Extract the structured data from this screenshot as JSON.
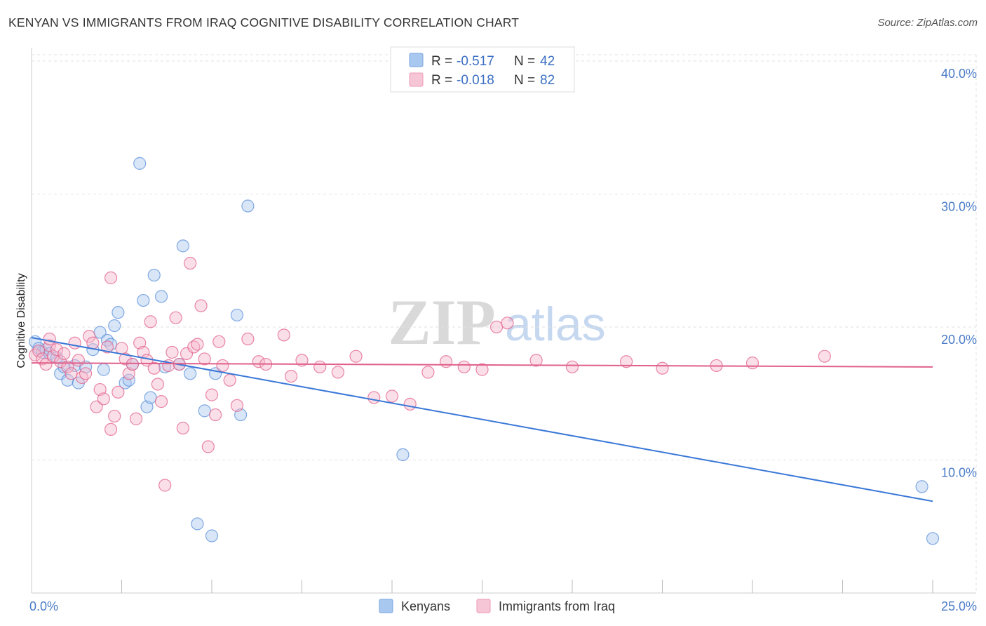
{
  "header": {
    "title": "KENYAN VS IMMIGRANTS FROM IRAQ COGNITIVE DISABILITY CORRELATION CHART",
    "source": "Source: ZipAtlas.com"
  },
  "watermark": {
    "zip": "ZIP",
    "atlas": "atlas"
  },
  "stats_legend": [
    {
      "r_label": "R =",
      "r_value": "-0.517",
      "n_label": "N =",
      "n_value": "42",
      "color": "#a9c8f0"
    },
    {
      "r_label": "R =",
      "r_value": "-0.018",
      "n_label": "N =",
      "n_value": "82",
      "color": "#f6b8cc"
    }
  ],
  "bottom_legend": [
    {
      "label": "Kenyans",
      "color": "#a9c8f0"
    },
    {
      "label": "Immigrants from Iraq",
      "color": "#f6b8cc"
    }
  ],
  "chart_data": {
    "type": "scatter",
    "title": "KENYAN VS IMMIGRANTS FROM IRAQ COGNITIVE DISABILITY CORRELATION CHART",
    "xlabel": "",
    "ylabel": "Cognitive Disability",
    "xlim": [
      0,
      25
    ],
    "ylim": [
      0,
      41
    ],
    "x_tick_labels": [
      "0.0%",
      "25.0%"
    ],
    "y_ticks": [
      10,
      20,
      30,
      40
    ],
    "y_tick_labels": [
      "10.0%",
      "20.0%",
      "30.0%",
      "40.0%"
    ],
    "grid": true,
    "legend_position": "bottom",
    "series": [
      {
        "name": "Kenyans",
        "color": "#5b8fd9",
        "fill": "#a9c8f0",
        "trend": {
          "x": [
            0,
            25
          ],
          "y": [
            19.2,
            6.9
          ]
        },
        "points": [
          [
            0.1,
            18.9
          ],
          [
            0.2,
            18.4
          ],
          [
            0.3,
            18.1
          ],
          [
            0.4,
            18.3
          ],
          [
            0.5,
            18.0
          ],
          [
            0.7,
            17.7
          ],
          [
            0.8,
            16.5
          ],
          [
            0.9,
            17.0
          ],
          [
            1.0,
            16.0
          ],
          [
            1.2,
            17.1
          ],
          [
            1.3,
            15.8
          ],
          [
            1.5,
            17.0
          ],
          [
            1.7,
            18.3
          ],
          [
            1.9,
            19.6
          ],
          [
            2.0,
            16.8
          ],
          [
            2.1,
            19.0
          ],
          [
            2.2,
            18.7
          ],
          [
            2.3,
            20.1
          ],
          [
            2.4,
            21.1
          ],
          [
            2.6,
            15.8
          ],
          [
            2.7,
            16.0
          ],
          [
            2.8,
            17.2
          ],
          [
            3.0,
            32.3
          ],
          [
            3.1,
            22.0
          ],
          [
            3.2,
            14.0
          ],
          [
            3.3,
            14.7
          ],
          [
            3.4,
            23.9
          ],
          [
            3.6,
            22.3
          ],
          [
            3.7,
            17.0
          ],
          [
            4.1,
            17.2
          ],
          [
            4.2,
            26.1
          ],
          [
            4.4,
            16.5
          ],
          [
            4.6,
            5.2
          ],
          [
            4.8,
            13.7
          ],
          [
            5.0,
            4.3
          ],
          [
            5.1,
            16.5
          ],
          [
            5.7,
            20.9
          ],
          [
            5.8,
            13.4
          ],
          [
            6.0,
            29.1
          ],
          [
            10.3,
            10.4
          ],
          [
            24.7,
            8.0
          ],
          [
            25.0,
            4.1
          ]
        ]
      },
      {
        "name": "Immigrants from Iraq",
        "color": "#e0608a",
        "fill": "#f6b8cc",
        "trend": {
          "x": [
            0,
            25
          ],
          "y": [
            17.3,
            17.0
          ]
        },
        "points": [
          [
            0.1,
            17.9
          ],
          [
            0.2,
            18.2
          ],
          [
            0.3,
            17.6
          ],
          [
            0.4,
            17.2
          ],
          [
            0.5,
            18.6
          ],
          [
            0.5,
            19.1
          ],
          [
            0.6,
            17.8
          ],
          [
            0.7,
            18.3
          ],
          [
            0.8,
            17.4
          ],
          [
            0.9,
            18.0
          ],
          [
            1.0,
            17.0
          ],
          [
            1.1,
            16.5
          ],
          [
            1.2,
            18.8
          ],
          [
            1.3,
            17.5
          ],
          [
            1.4,
            16.2
          ],
          [
            1.5,
            16.5
          ],
          [
            1.6,
            19.3
          ],
          [
            1.7,
            18.8
          ],
          [
            1.8,
            14.0
          ],
          [
            1.9,
            15.3
          ],
          [
            2.0,
            14.6
          ],
          [
            2.1,
            18.5
          ],
          [
            2.2,
            12.3
          ],
          [
            2.2,
            23.7
          ],
          [
            2.3,
            13.3
          ],
          [
            2.4,
            15.1
          ],
          [
            2.5,
            18.4
          ],
          [
            2.6,
            17.6
          ],
          [
            2.7,
            16.5
          ],
          [
            2.8,
            17.2
          ],
          [
            2.9,
            13.1
          ],
          [
            3.0,
            18.8
          ],
          [
            3.1,
            18.1
          ],
          [
            3.2,
            17.5
          ],
          [
            3.3,
            20.4
          ],
          [
            3.4,
            16.9
          ],
          [
            3.5,
            15.7
          ],
          [
            3.6,
            14.4
          ],
          [
            3.7,
            8.1
          ],
          [
            3.8,
            17.1
          ],
          [
            3.9,
            18.1
          ],
          [
            4.0,
            20.7
          ],
          [
            4.1,
            17.2
          ],
          [
            4.2,
            12.4
          ],
          [
            4.3,
            18.0
          ],
          [
            4.4,
            24.8
          ],
          [
            4.5,
            18.5
          ],
          [
            4.6,
            18.7
          ],
          [
            4.7,
            21.6
          ],
          [
            4.8,
            17.6
          ],
          [
            4.9,
            11.0
          ],
          [
            5.0,
            14.9
          ],
          [
            5.1,
            13.4
          ],
          [
            5.2,
            18.9
          ],
          [
            5.3,
            17.1
          ],
          [
            5.5,
            16.0
          ],
          [
            5.7,
            14.1
          ],
          [
            6.0,
            19.1
          ],
          [
            6.3,
            17.4
          ],
          [
            6.5,
            17.2
          ],
          [
            7.0,
            19.4
          ],
          [
            7.2,
            16.3
          ],
          [
            7.5,
            17.5
          ],
          [
            8.0,
            17.0
          ],
          [
            8.5,
            16.6
          ],
          [
            9.0,
            17.8
          ],
          [
            9.5,
            14.7
          ],
          [
            10.0,
            14.8
          ],
          [
            10.5,
            14.2
          ],
          [
            11.0,
            16.6
          ],
          [
            11.5,
            17.4
          ],
          [
            12.0,
            17.0
          ],
          [
            12.5,
            16.8
          ],
          [
            12.9,
            20.0
          ],
          [
            13.2,
            20.3
          ],
          [
            14.0,
            17.5
          ],
          [
            15.0,
            17.0
          ],
          [
            16.5,
            17.4
          ],
          [
            17.5,
            16.9
          ],
          [
            19.0,
            17.1
          ],
          [
            20.0,
            17.3
          ],
          [
            22.0,
            17.8
          ]
        ]
      }
    ]
  }
}
